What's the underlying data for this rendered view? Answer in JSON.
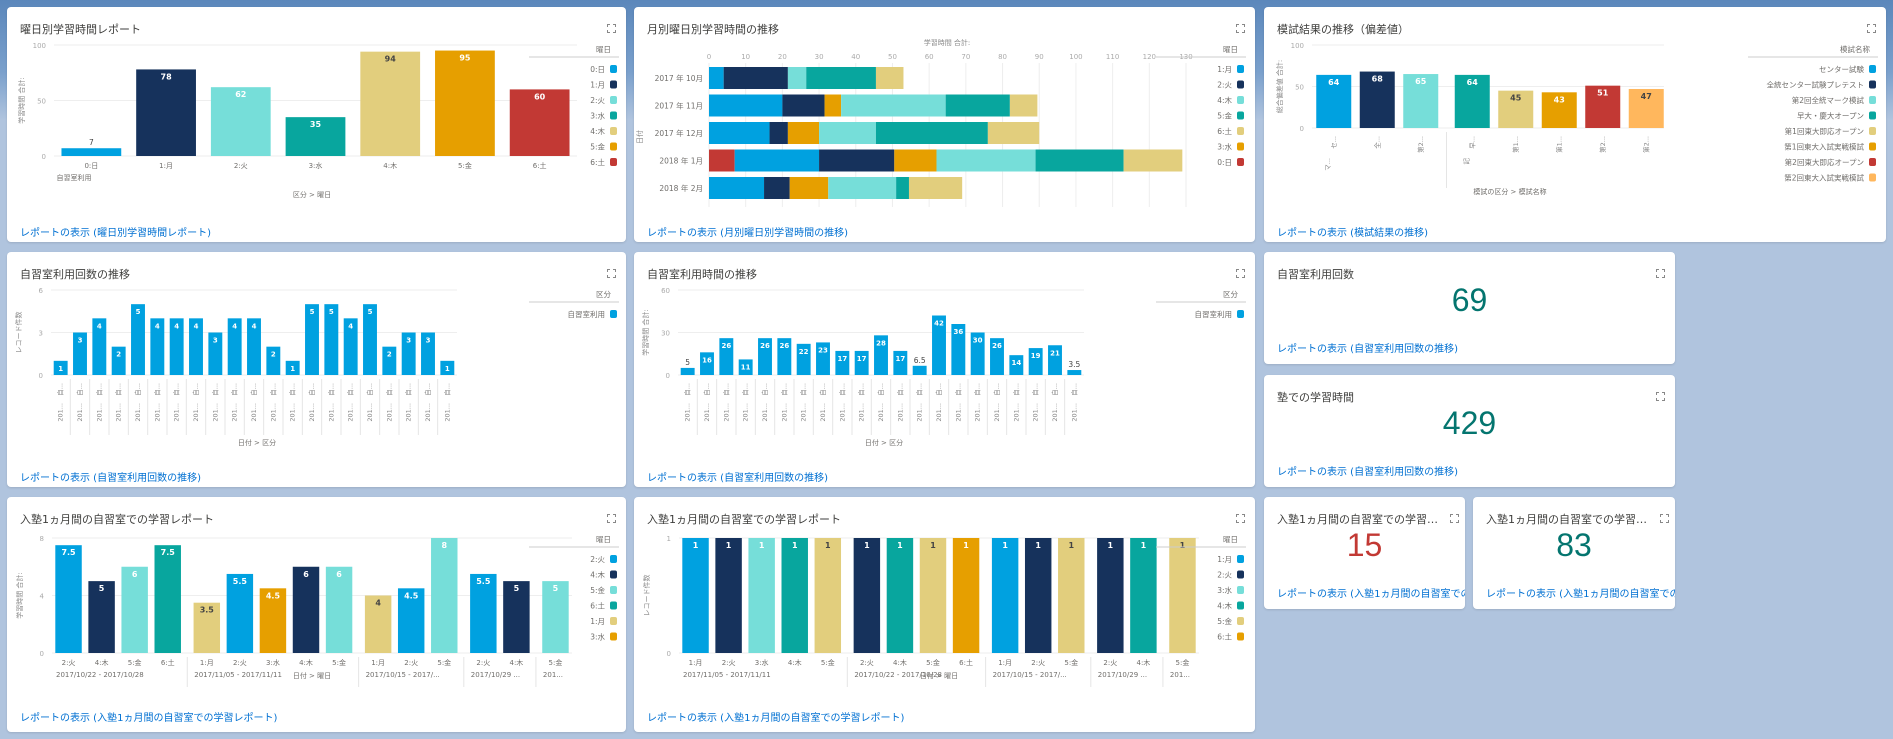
{
  "dashboard": {
    "colors": {
      "blue": "#00a1e0",
      "navy": "#16325c",
      "aqua": "#76ded9",
      "teal": "#08a69e",
      "sand": "#e2ce7d",
      "orange": "#e69f00",
      "red": "#c23934",
      "peach": "#ffb75d",
      "link": "#0070d2",
      "metric_green": "#04756f",
      "metric_red": "#c23934"
    }
  },
  "cards": {
    "weekday_report": {
      "title": "曜日別学習時間レポート",
      "link": "レポートの表示 (曜日別学習時間レポート)"
    },
    "monthly_weekday": {
      "title": "月別曜日別学習時間の推移",
      "link": "レポートの表示 (月別曜日別学習時間の推移)"
    },
    "mock_exam": {
      "title": "模試結果の推移（偏差値）",
      "link": "レポートの表示 (模試結果の推移)"
    },
    "room_count": {
      "title": "自習室利用回数の推移",
      "link": "レポートの表示 (自習室利用回数の推移)"
    },
    "room_hours": {
      "title": "自習室利用時間の推移",
      "link": "レポートの表示 (自習室利用回数の推移)"
    },
    "metric_room_count": {
      "title": "自習室利用回数",
      "value": "69",
      "link": "レポートの表示 (自習室利用回数の推移)"
    },
    "metric_juku_hours": {
      "title": "塾での学習時間",
      "value": "429",
      "link": "レポートの表示 (自習室利用回数の推移)"
    },
    "first_month_hours": {
      "title": "入塾1ヵ月間の自習室での学習レポート",
      "link": "レポートの表示 (入塾1ヵ月間の自習室での学習レポート)"
    },
    "first_month_count": {
      "title": "入塾1ヵ月間の自習室での学習レポート",
      "link": "レポートの表示 (入塾1ヵ月間の自習室での学習レポート)"
    },
    "metric_first_month_a": {
      "title": "入塾1ヵ月間の自習室での学習レポ...",
      "value": "15",
      "link": "レポートの表示 (入塾1ヵ月間の自習室での"
    },
    "metric_first_month_b": {
      "title": "入塾1ヵ月間の自習室での学習レポ...",
      "value": "83",
      "link": "レポートの表示 (入塾1ヵ月間の自習室での"
    }
  },
  "chart_data": [
    {
      "id": "weekday_report",
      "type": "bar",
      "title": "曜日別学習時間レポート",
      "xlabel": "区分 > 曜日",
      "ylabel": "学習時間 合計:",
      "ylim": [
        0,
        100
      ],
      "yticks": [
        0,
        50,
        100
      ],
      "group_labels": [
        "自習室利用"
      ],
      "categories": [
        "0:日",
        "1:月",
        "2:火",
        "3:水",
        "4:木",
        "5:金",
        "6:土"
      ],
      "values": [
        7,
        78,
        62,
        35,
        94,
        95,
        60
      ],
      "bar_colors": [
        "blue",
        "navy",
        "aqua",
        "teal",
        "sand",
        "orange",
        "red"
      ],
      "legend": {
        "title": "曜日",
        "position": "right",
        "items": [
          {
            "label": "0:日",
            "color": "blue"
          },
          {
            "label": "1:月",
            "color": "navy"
          },
          {
            "label": "2:火",
            "color": "aqua"
          },
          {
            "label": "3:水",
            "color": "teal"
          },
          {
            "label": "4:木",
            "color": "sand"
          },
          {
            "label": "5:金",
            "color": "orange"
          },
          {
            "label": "6:土",
            "color": "red"
          }
        ]
      }
    },
    {
      "id": "monthly_weekday",
      "type": "bar",
      "orientation": "horizontal-stacked",
      "title": "月別曜日別学習時間の推移",
      "xlabel": "学習時間 合計:",
      "ylabel": "日付",
      "xlim": [
        0,
        130
      ],
      "xticks": [
        0,
        10,
        20,
        30,
        40,
        50,
        60,
        70,
        80,
        90,
        100,
        110,
        120,
        130
      ],
      "categories": [
        "2017 年 10月",
        "2017 年 11月",
        "2017 年 12月",
        "2018 年 1月",
        "2018 年 2月"
      ],
      "series": [
        {
          "name": "0:日",
          "color": "red",
          "values": [
            0,
            0,
            0,
            7,
            0
          ]
        },
        {
          "name": "1:月",
          "color": "blue",
          "values": [
            4,
            20,
            16.5,
            23,
            15
          ]
        },
        {
          "name": "2:火",
          "color": "navy",
          "values": [
            17.5,
            11.5,
            5,
            20.5,
            7
          ]
        },
        {
          "name": "3:水",
          "color": "orange",
          "values": [
            0,
            4.5,
            8.5,
            11.5,
            10.5
          ]
        },
        {
          "name": "4:木",
          "color": "aqua",
          "values": [
            5,
            28.5,
            15.5,
            27,
            18.5
          ]
        },
        {
          "name": "5:金",
          "color": "teal",
          "values": [
            19,
            17.5,
            30.5,
            24,
            3.5
          ]
        },
        {
          "name": "6:土",
          "color": "sand",
          "values": [
            7.5,
            7.5,
            14,
            16,
            14.5
          ]
        }
      ],
      "legend": {
        "title": "曜日",
        "position": "right",
        "items": [
          {
            "label": "1:月",
            "color": "blue"
          },
          {
            "label": "2:火",
            "color": "navy"
          },
          {
            "label": "4:木",
            "color": "aqua"
          },
          {
            "label": "5:金",
            "color": "teal"
          },
          {
            "label": "6:土",
            "color": "sand"
          },
          {
            "label": "3:水",
            "color": "orange"
          },
          {
            "label": "0:日",
            "color": "red"
          }
        ]
      }
    },
    {
      "id": "mock_exam",
      "type": "bar",
      "title": "模試結果の推移（偏差値）",
      "xlabel": "模試の区分 > 模試名称",
      "ylabel": "総合偏差値 合計:",
      "ylim": [
        0,
        100
      ],
      "yticks": [
        0,
        50,
        100
      ],
      "groups": [
        {
          "label": "マ...",
          "count": 3
        },
        {
          "label": "記",
          "count": 5
        }
      ],
      "categories": [
        "セ...",
        "全...",
        "第2...",
        "早...",
        "第1...",
        "第1...",
        "第2...",
        "第2..."
      ],
      "values": [
        64,
        68,
        65,
        64,
        45,
        43,
        51,
        47
      ],
      "bar_colors": [
        "blue",
        "navy",
        "aqua",
        "teal",
        "sand",
        "orange",
        "red",
        "peach"
      ],
      "legend": {
        "title": "模試名称",
        "position": "right",
        "items": [
          {
            "label": "センター試験",
            "color": "blue"
          },
          {
            "label": "全統センター試験プレテスト",
            "color": "navy"
          },
          {
            "label": "第2回全統マーク模試",
            "color": "aqua"
          },
          {
            "label": "早大・慶大オープン",
            "color": "teal"
          },
          {
            "label": "第1回東大即応オープン",
            "color": "sand"
          },
          {
            "label": "第1回東大入試実戦模試",
            "color": "orange"
          },
          {
            "label": "第2回東大即応オープン",
            "color": "red"
          },
          {
            "label": "第2回東大入試実戦模試",
            "color": "peach"
          }
        ]
      }
    },
    {
      "id": "room_count",
      "type": "bar",
      "title": "自習室利用回数の推移",
      "xlabel": "日付 > 区分",
      "ylabel": "レコード件数",
      "ylim": [
        0,
        6
      ],
      "yticks": [
        0,
        3,
        6
      ],
      "categories": [
        "201...",
        "201...",
        "201...",
        "201...",
        "201...",
        "201...",
        "201...",
        "201...",
        "201...",
        "201...",
        "201...",
        "201...",
        "201...",
        "201...",
        "201...",
        "201...",
        "201...",
        "201...",
        "201...",
        "201...",
        "201..."
      ],
      "sub_label": "自...",
      "values": [
        1,
        3,
        4,
        2,
        5,
        4,
        4,
        4,
        3,
        4,
        4,
        2,
        1,
        5,
        5,
        4,
        5,
        2,
        3,
        3,
        1
      ],
      "color": "blue",
      "legend": {
        "title": "区分",
        "position": "right",
        "items": [
          {
            "label": "自習室利用",
            "color": "blue"
          }
        ]
      }
    },
    {
      "id": "room_hours",
      "type": "bar",
      "title": "自習室利用時間の推移",
      "xlabel": "日付 > 区分",
      "ylabel": "学習時間 合計:",
      "ylim": [
        0,
        60
      ],
      "yticks": [
        0,
        30,
        60
      ],
      "categories": [
        "201...",
        "201...",
        "201...",
        "201...",
        "201...",
        "201...",
        "201...",
        "201...",
        "201...",
        "201...",
        "201...",
        "201...",
        "201...",
        "201...",
        "201...",
        "201...",
        "201...",
        "201...",
        "201...",
        "201...",
        "201..."
      ],
      "sub_label": "自...",
      "values": [
        5,
        16,
        26,
        11,
        26,
        26,
        22,
        23,
        17,
        17,
        28,
        17,
        6.5,
        42,
        36,
        30,
        26,
        14,
        19,
        21,
        3.5
      ],
      "color": "blue",
      "legend": {
        "title": "区分",
        "position": "right",
        "items": [
          {
            "label": "自習室利用",
            "color": "blue"
          }
        ]
      }
    },
    {
      "id": "first_month_hours",
      "type": "bar",
      "title": "入塾1ヵ月間の自習室での学習レポート",
      "xlabel": "日付 > 曜日",
      "ylabel": "学習時間 合計:",
      "ylim": [
        0,
        8
      ],
      "yticks": [
        0,
        4,
        8
      ],
      "groups": [
        {
          "label": "2017/10/22 - 2017/10/28",
          "categories": [
            "2:火",
            "4:木",
            "5:金",
            "6:土"
          ],
          "values": [
            7.5,
            5,
            6,
            7.5
          ],
          "colors": [
            "blue",
            "navy",
            "aqua",
            "teal"
          ]
        },
        {
          "label": "2017/11/05 - 2017/11/11",
          "categories": [
            "1:月",
            "2:火",
            "3:水",
            "4:木",
            "5:金"
          ],
          "values": [
            3.5,
            5.5,
            4.5,
            6,
            6
          ],
          "colors": [
            "sand",
            "blue",
            "orange",
            "navy",
            "aqua"
          ]
        },
        {
          "label": "2017/10/15 - 2017/...",
          "categories": [
            "1:月",
            "2:火",
            "5:金"
          ],
          "values": [
            4,
            4.5,
            8
          ],
          "colors": [
            "sand",
            "blue",
            "aqua"
          ]
        },
        {
          "label": "2017/10/29 ...",
          "categories": [
            "2:火",
            "4:木"
          ],
          "values": [
            5.5,
            5
          ],
          "colors": [
            "blue",
            "navy"
          ]
        },
        {
          "label": "201...",
          "categories": [
            "5:金"
          ],
          "values": [
            5
          ],
          "colors": [
            "aqua"
          ]
        }
      ],
      "legend": {
        "title": "曜日",
        "position": "right",
        "items": [
          {
            "label": "2:火",
            "color": "blue"
          },
          {
            "label": "4:木",
            "color": "navy"
          },
          {
            "label": "5:金",
            "color": "aqua"
          },
          {
            "label": "6:土",
            "color": "teal"
          },
          {
            "label": "1:月",
            "color": "sand"
          },
          {
            "label": "3:水",
            "color": "orange"
          }
        ]
      }
    },
    {
      "id": "first_month_count",
      "type": "bar",
      "title": "入塾1ヵ月間の自習室での学習レポート",
      "xlabel": "日付 > 曜日",
      "ylabel": "レコード件数",
      "ylim": [
        0,
        1
      ],
      "yticks": [
        0,
        1
      ],
      "groups": [
        {
          "label": "2017/11/05 - 2017/11/11",
          "categories": [
            "1:月",
            "2:火",
            "3:水",
            "4:木",
            "5:金"
          ],
          "values": [
            1,
            1,
            1,
            1,
            1
          ],
          "colors": [
            "blue",
            "navy",
            "aqua",
            "teal",
            "sand"
          ]
        },
        {
          "label": "2017/10/22 - 2017/10/28",
          "categories": [
            "2:火",
            "4:木",
            "5:金",
            "6:土"
          ],
          "values": [
            1,
            1,
            1,
            1
          ],
          "colors": [
            "navy",
            "teal",
            "sand",
            "orange"
          ]
        },
        {
          "label": "2017/10/15 - 2017/...",
          "categories": [
            "1:月",
            "2:火",
            "5:金"
          ],
          "values": [
            1,
            1,
            1
          ],
          "colors": [
            "blue",
            "navy",
            "sand"
          ]
        },
        {
          "label": "2017/10/29 ...",
          "categories": [
            "2:火",
            "4:木"
          ],
          "values": [
            1,
            1
          ],
          "colors": [
            "navy",
            "teal"
          ]
        },
        {
          "label": "201...",
          "categories": [
            "5:金"
          ],
          "values": [
            1
          ],
          "colors": [
            "sand"
          ]
        }
      ],
      "legend": {
        "title": "曜日",
        "position": "right",
        "items": [
          {
            "label": "1:月",
            "color": "blue"
          },
          {
            "label": "2:火",
            "color": "navy"
          },
          {
            "label": "3:水",
            "color": "aqua"
          },
          {
            "label": "4:木",
            "color": "teal"
          },
          {
            "label": "5:金",
            "color": "sand"
          },
          {
            "label": "6:土",
            "color": "orange"
          }
        ]
      }
    }
  ]
}
